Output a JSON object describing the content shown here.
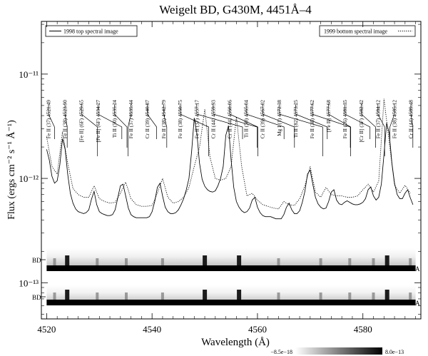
{
  "chart_data": {
    "type": "line",
    "title": "Weigelt BD, G430M, 4451Å–4",
    "xlabel": "Wavelength (Å)",
    "ylabel": "Flux (ergs cm⁻² s⁻¹ Å⁻¹)",
    "xlim": [
      4519,
      4591
    ],
    "ylim_log": [
      4.5e-14,
      3.2e-11
    ],
    "x_ticks": [
      4520,
      4540,
      4560,
      4580
    ],
    "y_tick_labels": [
      "10⁻¹¹",
      "10⁻¹²",
      "10⁻¹³"
    ],
    "y_tick_values": [
      1e-11,
      1e-12,
      1e-13
    ],
    "legend": {
      "left": "1998 top spectral image",
      "right": "1999 bottom spectral image",
      "placement": "top"
    },
    "series": [
      {
        "name": "1998 top spectral image",
        "style": "solid",
        "x": [
          4520.0,
          4520.5,
          4521.0,
          4521.5,
          4522.0,
          4522.5,
          4523.0,
          4523.5,
          4524.0,
          4524.5,
          4525.0,
          4525.5,
          4526.0,
          4526.5,
          4527.0,
          4527.5,
          4528.0,
          4528.5,
          4529.0,
          4529.5,
          4530.0,
          4530.5,
          4531.0,
          4531.5,
          4532.0,
          4532.5,
          4533.0,
          4533.5,
          4534.0,
          4534.5,
          4535.0,
          4535.5,
          4536.0,
          4536.5,
          4537.0,
          4537.5,
          4538.0,
          4538.5,
          4539.0,
          4539.5,
          4540.0,
          4540.5,
          4541.0,
          4541.5,
          4542.0,
          4542.5,
          4543.0,
          4543.5,
          4544.0,
          4544.5,
          4545.0,
          4545.5,
          4546.0,
          4546.5,
          4547.0,
          4547.5,
          4548.0,
          4548.5,
          4549.0,
          4549.5,
          4550.0,
          4550.5,
          4551.0,
          4551.5,
          4552.0,
          4552.5,
          4553.0,
          4553.5,
          4554.0,
          4554.5,
          4555.0,
          4555.5,
          4556.0,
          4556.5,
          4557.0,
          4557.5,
          4558.0,
          4558.5,
          4559.0,
          4559.5,
          4560.0,
          4560.5,
          4561.0,
          4561.5,
          4562.0,
          4562.5,
          4563.0,
          4563.5,
          4564.0,
          4564.5,
          4565.0,
          4565.5,
          4566.0,
          4566.5,
          4567.0,
          4567.5,
          4568.0,
          4568.5,
          4569.0,
          4569.5,
          4570.0,
          4570.5,
          4571.0,
          4571.5,
          4572.0,
          4572.5,
          4573.0,
          4573.5,
          4574.0,
          4574.5,
          4575.0,
          4575.5,
          4576.0,
          4576.5,
          4577.0,
          4577.5,
          4578.0,
          4578.5,
          4579.0,
          4579.5,
          4580.0,
          4580.5,
          4581.0,
          4581.5,
          4582.0,
          4582.5,
          4583.0,
          4583.5,
          4584.0,
          4584.5,
          4585.0,
          4585.5,
          4586.0,
          4586.5,
          4587.0,
          4587.5,
          4588.0,
          4588.5,
          4589.0,
          4589.5
        ],
        "y": [
          1.9e-12,
          1.5e-12,
          1.05e-12,
          9e-13,
          9.5e-13,
          1.35e-12,
          2.4e-12,
          1.9e-12,
          1.1e-12,
          7.2e-13,
          5.8e-13,
          5.1e-13,
          4.8e-13,
          4.7e-13,
          4.6e-13,
          4.7e-13,
          5e-13,
          6.3e-13,
          7.5e-13,
          5.6e-13,
          4.8e-13,
          4.6e-13,
          4.5e-13,
          4.4e-13,
          4.4e-13,
          4.5e-13,
          5e-13,
          6.5e-13,
          8.5e-13,
          8.8e-13,
          6.8e-13,
          5.2e-13,
          4.5e-13,
          4.3e-13,
          4.2e-13,
          4.2e-13,
          4.2e-13,
          4.2e-13,
          4.2e-13,
          4.3e-13,
          4.8e-13,
          6e-13,
          8.2e-13,
          9e-13,
          6.8e-13,
          5.3e-13,
          4.8e-13,
          4.6e-13,
          4.6e-13,
          4.7e-13,
          5e-13,
          5.6e-13,
          6.4e-13,
          7.8e-13,
          1e-12,
          1.8e-12,
          3.8e-12,
          2.7e-12,
          1.4e-12,
          9.8e-13,
          8.4e-13,
          7.8e-13,
          7.5e-13,
          7.4e-13,
          7.6e-13,
          8.5e-13,
          1e-12,
          1.3e-12,
          2.6e-12,
          3.2e-12,
          1.5e-12,
          8.2e-13,
          6e-13,
          5.3e-13,
          4.9e-13,
          4.7e-13,
          4.8e-13,
          5.2e-13,
          6.2e-13,
          6.6e-13,
          5.3e-13,
          4.7e-13,
          4.4e-13,
          4.3e-13,
          4.3e-13,
          4.3e-13,
          4.2e-13,
          4.1e-13,
          4.1e-13,
          4.1e-13,
          4.5e-13,
          5.3e-13,
          5.8e-13,
          5e-13,
          4.6e-13,
          4.6e-13,
          4.9e-13,
          5.9e-13,
          7.5e-13,
          1.1e-12,
          1.2e-12,
          8.8e-13,
          6.6e-13,
          5.7e-13,
          5.3e-13,
          5.1e-13,
          5.2e-13,
          6e-13,
          7.4e-13,
          7.8e-13,
          6.2e-13,
          5.7e-13,
          5.6e-13,
          5.9e-13,
          6.1e-13,
          5.9e-13,
          5.7e-13,
          5.6e-13,
          5.6e-13,
          5.7e-13,
          5.9e-13,
          6.4e-13,
          7.8e-13,
          8.3e-13,
          6.8e-13,
          6.2e-13,
          6.6e-13,
          8.8e-13,
          1.7e-12,
          3.4e-12,
          2.7e-12,
          1.4e-12,
          9e-13,
          7e-13,
          6.4e-13,
          6.4e-13,
          7.2e-13,
          7.8e-13,
          6.5e-13,
          5.6e-13
        ]
      },
      {
        "name": "1999 bottom spectral image",
        "style": "dotted",
        "x": [
          4520.0,
          4521.0,
          4522.0,
          4523.0,
          4524.0,
          4525.0,
          4526.0,
          4527.0,
          4528.0,
          4529.0,
          4530.0,
          4531.0,
          4532.0,
          4533.0,
          4534.0,
          4535.0,
          4536.0,
          4537.0,
          4538.0,
          4539.0,
          4540.0,
          4541.0,
          4542.0,
          4543.0,
          4544.0,
          4545.0,
          4546.0,
          4547.0,
          4548.0,
          4549.0,
          4550.0,
          4551.0,
          4552.0,
          4553.0,
          4554.0,
          4555.0,
          4556.0,
          4557.0,
          4558.0,
          4559.0,
          4560.0,
          4561.0,
          4562.0,
          4563.0,
          4564.0,
          4565.0,
          4566.0,
          4567.0,
          4568.0,
          4569.0,
          4570.0,
          4571.0,
          4572.0,
          4573.0,
          4574.0,
          4575.0,
          4576.0,
          4577.0,
          4578.0,
          4579.0,
          4580.0,
          4581.0,
          4582.0,
          4583.0,
          4584.0,
          4585.0,
          4586.0,
          4587.0,
          4588.0,
          4589.0
        ],
        "y": [
          2.5e-12,
          1.3e-12,
          1.1e-12,
          2.8e-12,
          1.4e-12,
          8e-13,
          7e-13,
          6.6e-13,
          6.6e-13,
          8.5e-13,
          6.4e-13,
          6e-13,
          5.8e-13,
          5.9e-13,
          7.2e-13,
          9.2e-13,
          6.4e-13,
          5.6e-13,
          5.4e-13,
          5.4e-13,
          5.5e-13,
          7.2e-13,
          1e-12,
          6.6e-13,
          5.8e-13,
          6e-13,
          6.6e-13,
          8.2e-13,
          1.3e-12,
          2e-12,
          4.6e-12,
          1.6e-12,
          1e-12,
          9.6e-13,
          1e-12,
          1.3e-12,
          3.9e-12,
          1.3e-12,
          6.8e-13,
          7.2e-13,
          6.2e-13,
          5.6e-13,
          5.4e-13,
          5.2e-13,
          5.1e-13,
          6e-13,
          5.6e-13,
          5.5e-13,
          6.4e-13,
          8.5e-13,
          1.3e-12,
          7.4e-13,
          6.6e-13,
          8.2e-13,
          7e-13,
          6.8e-13,
          6.8e-13,
          6.6e-13,
          6.6e-13,
          6.8e-13,
          7.8e-13,
          8.8e-13,
          7.4e-13,
          9.4e-13,
          5.8e-12,
          2.2e-12,
          8.6e-13,
          7.2e-13,
          8.6e-13,
          7.2e-13
        ]
      }
    ],
    "line_ids": [
      {
        "label": "Fe II  (37) 4521.49",
        "x": 4521.49
      },
      {
        "label": "Fe II  (38) 4523.90",
        "x": 4523.9
      },
      {
        "label": "[Fe II]  (6F) 4529.65",
        "x": 4529.65
      },
      {
        "label": "[Fe II]  (6F) 4534.27",
        "x": 4534.27
      },
      {
        "label": "Ti II  (50) 4535.24",
        "x": 4535.24
      },
      {
        "label": "Fe II  (37) 4535.44",
        "x": 4535.44
      },
      {
        "label": "Cr II  (39) 4540.87",
        "x": 4540.87
      },
      {
        "label": "Fe II  (38) 4542.79",
        "x": 4542.79
      },
      {
        "label": "Fe II  (38) 4550.75",
        "x": 4550.75
      },
      {
        "label": "Fe II  (37) 4557.17",
        "x": 4557.17
      },
      {
        "label": "Cr II  (44) 4559.93",
        "x": 4559.93
      },
      {
        "label": "Cr II  (44) 4560.06",
        "x": 4560.06
      },
      {
        "label": "Ti II  (50) 4565.04",
        "x": 4565.04
      },
      {
        "label": "Cr II  (39) 4567.02",
        "x": 4567.02
      },
      {
        "label": "Mg I  (1) 4572.38",
        "x": 4572.38
      },
      {
        "label": "Ti II  (82) 4573.25",
        "x": 4573.25
      },
      {
        "label": "Fe II  (38) 4577.62",
        "x": 4577.62
      },
      {
        "label": "[Fe II]  4577.68",
        "x": 4577.68
      },
      {
        "label": "Fe II  (26) 4581.35",
        "x": 4581.35
      },
      {
        "label": "[Cr II]  (3F) 4582.42",
        "x": 4582.42
      },
      {
        "label": "Fe II  (37) 4584.12",
        "x": 4584.12
      },
      {
        "label": "Fe II  (38) 4585.12",
        "x": 4585.12
      },
      {
        "label": "Cr II  (44) 4589.48",
        "x": 4589.48
      }
    ],
    "spectral_images": {
      "left_marker": "BD",
      "right_marker": "A",
      "colorbar_min": "−8.5e−18",
      "colorbar_max": "8.0e−13",
      "emission_peaks": [
        4521.5,
        4523.9,
        4529.6,
        4535.1,
        4542.0,
        4550.0,
        4556.5,
        4564.0,
        4572.0,
        4577.5,
        4582.0,
        4584.6,
        4589.0
      ]
    }
  }
}
